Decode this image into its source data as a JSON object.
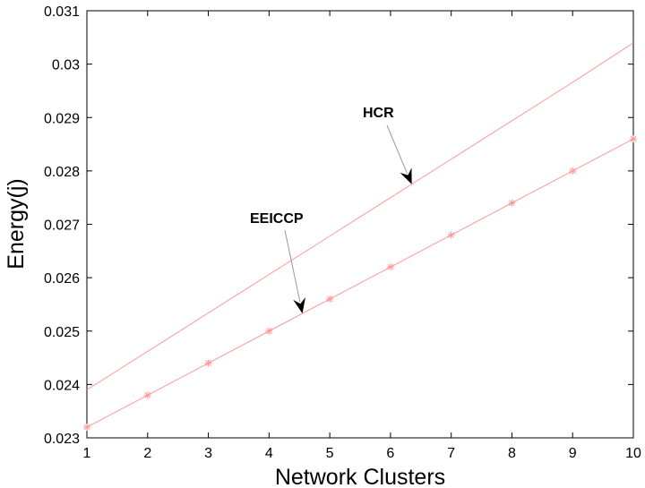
{
  "chart_data": {
    "type": "line",
    "title": "",
    "xlabel": "Network Clusters",
    "ylabel": "Energy(j)",
    "x": [
      1,
      2,
      3,
      4,
      5,
      6,
      7,
      8,
      9,
      10
    ],
    "xlim": [
      1,
      10
    ],
    "ylim": [
      0.023,
      0.031
    ],
    "xticks": [
      "1",
      "2",
      "3",
      "4",
      "5",
      "6",
      "7",
      "8",
      "9",
      "10"
    ],
    "yticks": [
      "0.023",
      "0.024",
      "0.025",
      "0.026",
      "0.027",
      "0.028",
      "0.029",
      "0.03",
      "0.031"
    ],
    "grid": false,
    "series": [
      {
        "name": "HCR",
        "values": [
          0.0239,
          0.02462,
          0.02534,
          0.02606,
          0.02678,
          0.0275,
          0.02822,
          0.02894,
          0.02966,
          0.0304
        ],
        "color": "#ff9999",
        "marker": "none"
      },
      {
        "name": "EEICCP",
        "values": [
          0.0232,
          0.0238,
          0.0244,
          0.025,
          0.0256,
          0.0262,
          0.0268,
          0.0274,
          0.028,
          0.0286
        ],
        "color": "#ff9999",
        "marker": "asterisk"
      }
    ],
    "annotations": [
      {
        "text": "HCR",
        "arrow_to": [
          6.35,
          0.02775
        ]
      },
      {
        "text": "EEICCP",
        "arrow_to": [
          4.55,
          0.02533
        ]
      }
    ]
  }
}
